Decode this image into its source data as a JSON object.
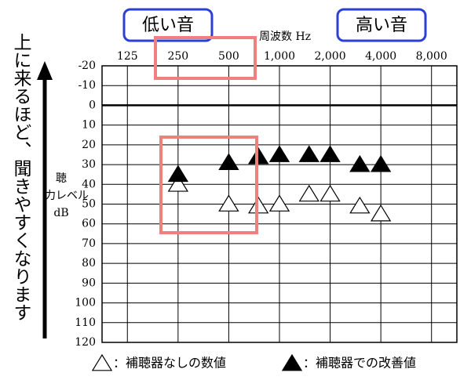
{
  "chart_data": {
    "type": "audiogram",
    "xlabel": "周波数 Hz",
    "ylabel": [
      "聴",
      "力レベル",
      "dB"
    ],
    "x_log": true,
    "y_inverted": true,
    "xlim": [
      88.4,
      11314
    ],
    "xticks": [
      125,
      250,
      500,
      {
        "value": 1000,
        "label": "1,000"
      },
      {
        "value": 2000,
        "label": "2,000"
      },
      {
        "value": 4000,
        "label": "4,000"
      },
      {
        "value": 8000,
        "label": "8,000"
      }
    ],
    "ylim": [
      -20,
      120
    ],
    "yticks": [
      -20,
      -10,
      0,
      10,
      20,
      30,
      40,
      50,
      60,
      70,
      80,
      90,
      100,
      110,
      120
    ],
    "grid": true,
    "x": [
      250,
      500,
      750,
      1000,
      1500,
      2000,
      3000,
      4000
    ],
    "series": [
      {
        "name": "：補聴器なしの数値",
        "color": "#ffffff",
        "values": [
          40,
          50,
          51,
          50,
          45,
          45,
          51,
          55
        ]
      },
      {
        "name": "：補聴器での改善値",
        "color": "#000000",
        "values": [
          35,
          29,
          26,
          25,
          25,
          25,
          30,
          30
        ]
      }
    ],
    "annotations": [
      "低い音",
      "高い音",
      "上に来るほど、聞きやすくなります"
    ]
  }
}
